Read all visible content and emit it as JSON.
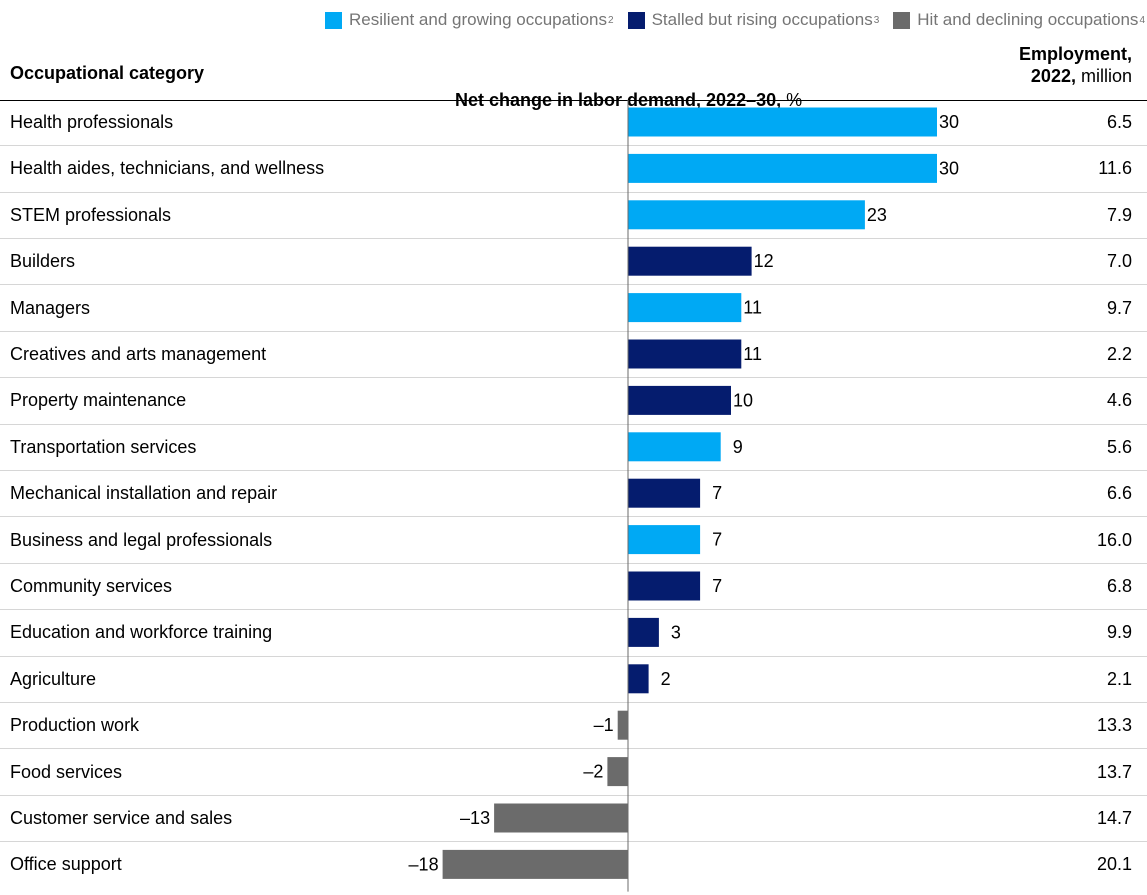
{
  "legend": [
    {
      "label": "Resilient and growing occupations",
      "note": "2",
      "color": "#00a9f4"
    },
    {
      "label": "Stalled but rising occupations",
      "note": "3",
      "color": "#051c6e"
    },
    {
      "label": "Hit and declining occupations",
      "note": "4",
      "color": "#6b6b6b"
    }
  ],
  "headers": {
    "category": "Occupational category",
    "change_bold": "Net change in labor demand, 2022–30,",
    "change_unit": "%",
    "employment_line1": "Employment,",
    "employment_bold": "2022,",
    "employment_unit": "million"
  },
  "chart_data": {
    "type": "bar",
    "orientation": "horizontal",
    "categories": [
      "Health professionals",
      "Health aides, technicians, and wellness",
      "STEM professionals",
      "Builders",
      "Managers",
      "Creatives and arts management",
      "Property maintenance",
      "Transportation services",
      "Mechanical installation and repair",
      "Business and legal professionals",
      "Community services",
      "Education and workforce training",
      "Agriculture",
      "Production work",
      "Food services",
      "Customer service and sales",
      "Office support"
    ],
    "values": [
      30,
      30,
      23,
      12,
      11,
      11,
      10,
      9,
      7,
      7,
      7,
      3,
      2,
      -1,
      -2,
      -13,
      -18
    ],
    "value_labels": [
      "30",
      "30",
      "23",
      "12",
      "11",
      "11",
      "10",
      "9",
      "7",
      "7",
      "7",
      "3",
      "2",
      "–1",
      "–2",
      "–13",
      "–18"
    ],
    "groups": [
      "resilient",
      "resilient",
      "resilient",
      "stalled",
      "resilient",
      "stalled",
      "stalled",
      "resilient",
      "stalled",
      "resilient",
      "stalled",
      "stalled",
      "stalled",
      "declining",
      "declining",
      "declining",
      "declining"
    ],
    "group_colors": {
      "resilient": "#00a9f4",
      "stalled": "#051c6e",
      "declining": "#6b6b6b"
    },
    "employment": [
      "6.5",
      "11.6",
      "7.9",
      "7.0",
      "9.7",
      "2.2",
      "4.6",
      "5.6",
      "6.6",
      "16.0",
      "6.8",
      "9.9",
      "2.1",
      "13.3",
      "13.7",
      "14.7",
      "20.1"
    ],
    "xlim": [
      -18,
      30
    ],
    "grid": false
  }
}
